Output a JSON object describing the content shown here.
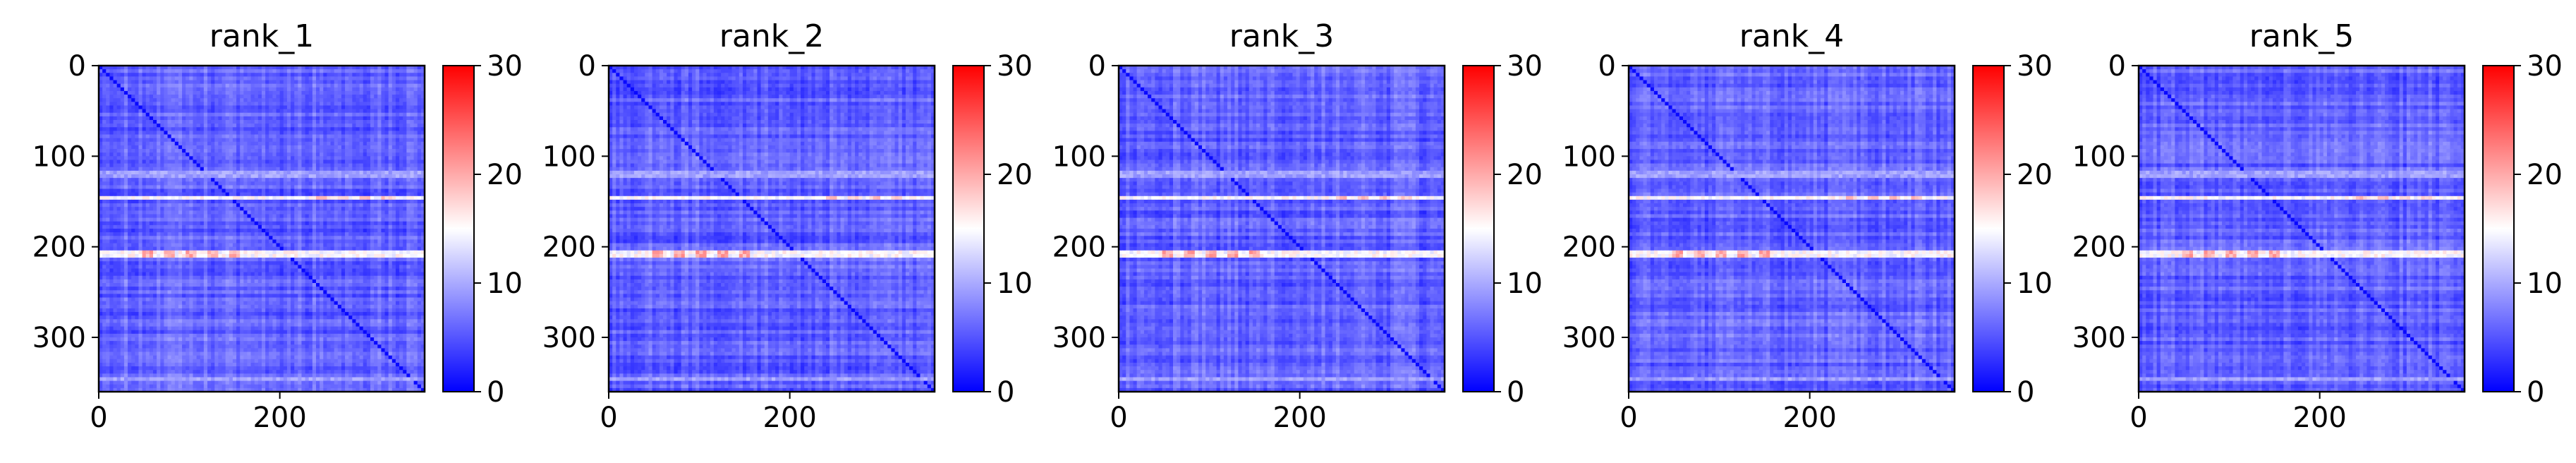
{
  "chart_data": [
    {
      "type": "heatmap",
      "title": "rank_1",
      "xlim": [
        0,
        360
      ],
      "ylim": [
        360,
        0
      ],
      "xticks": [
        "0",
        "200"
      ],
      "yticks": [
        "0",
        "100",
        "200",
        "300"
      ],
      "colorbar": {
        "min": 0,
        "max": 30,
        "ticks": [
          "0",
          "10",
          "20",
          "30"
        ],
        "colormap": "bwr"
      },
      "features": {
        "background": 2,
        "diagonal": 0.5,
        "bright_rows": [
          146,
          208
        ],
        "faint_rows": [
          120,
          345
        ]
      }
    },
    {
      "type": "heatmap",
      "title": "rank_2",
      "xlim": [
        0,
        360
      ],
      "ylim": [
        360,
        0
      ],
      "xticks": [
        "0",
        "200"
      ],
      "yticks": [
        "0",
        "100",
        "200",
        "300"
      ],
      "colorbar": {
        "min": 0,
        "max": 30,
        "ticks": [
          "0",
          "10",
          "20",
          "30"
        ],
        "colormap": "bwr"
      },
      "features": {
        "background": 2,
        "diagonal": 0.5,
        "bright_rows": [
          146,
          208
        ],
        "faint_rows": [
          120,
          345
        ]
      }
    },
    {
      "type": "heatmap",
      "title": "rank_3",
      "xlim": [
        0,
        360
      ],
      "ylim": [
        360,
        0
      ],
      "xticks": [
        "0",
        "200"
      ],
      "yticks": [
        "0",
        "100",
        "200",
        "300"
      ],
      "colorbar": {
        "min": 0,
        "max": 30,
        "ticks": [
          "0",
          "10",
          "20",
          "30"
        ],
        "colormap": "bwr"
      },
      "features": {
        "background": 2,
        "diagonal": 0.5,
        "bright_rows": [
          146,
          208
        ],
        "faint_rows": [
          120,
          345
        ]
      }
    },
    {
      "type": "heatmap",
      "title": "rank_4",
      "xlim": [
        0,
        360
      ],
      "ylim": [
        360,
        0
      ],
      "xticks": [
        "0",
        "200"
      ],
      "yticks": [
        "0",
        "100",
        "200",
        "300"
      ],
      "colorbar": {
        "min": 0,
        "max": 30,
        "ticks": [
          "0",
          "10",
          "20",
          "30"
        ],
        "colormap": "bwr"
      },
      "features": {
        "background": 2,
        "diagonal": 0.5,
        "bright_rows": [
          146,
          208
        ],
        "faint_rows": [
          120,
          345
        ]
      }
    },
    {
      "type": "heatmap",
      "title": "rank_5",
      "xlim": [
        0,
        360
      ],
      "ylim": [
        360,
        0
      ],
      "xticks": [
        "0",
        "200"
      ],
      "yticks": [
        "0",
        "100",
        "200",
        "300"
      ],
      "colorbar": {
        "min": 0,
        "max": 30,
        "ticks": [
          "0",
          "10",
          "20",
          "30"
        ],
        "colormap": "bwr"
      },
      "features": {
        "background": 2,
        "diagonal": 0.5,
        "bright_rows": [
          146,
          208
        ],
        "faint_rows": [
          120,
          345
        ]
      }
    }
  ]
}
